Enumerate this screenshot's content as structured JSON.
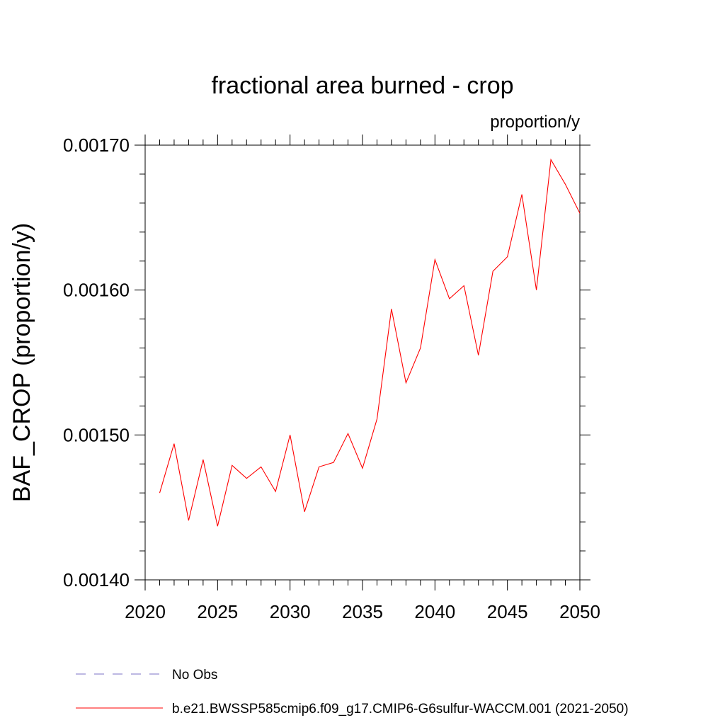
{
  "chart_data": {
    "type": "line",
    "title": "fractional area burned - crop",
    "units_label": "proportion/y",
    "xlabel": "",
    "ylabel": "BAF_CROP  (proportion/y)",
    "xlim": [
      2020,
      2050
    ],
    "ylim": [
      0.0014,
      0.0017
    ],
    "x_ticks": [
      2020,
      2025,
      2030,
      2035,
      2040,
      2045,
      2050
    ],
    "x_tick_labels": [
      "2020",
      "2025",
      "2030",
      "2035",
      "2040",
      "2045",
      "2050"
    ],
    "y_ticks": [
      0.0014,
      0.0015,
      0.0016,
      0.0017
    ],
    "y_tick_labels": [
      "0.00140",
      "0.00150",
      "0.00160",
      "0.00170"
    ],
    "grid": false,
    "legend_position": "bottom",
    "series": [
      {
        "name": "b.e21.BWSSP585cmip6.f09_g17.CMIP6-G6sulfur-WACCM.001 (2021-2050)",
        "color": "#ff0000",
        "style": "solid",
        "x": [
          2021,
          2022,
          2023,
          2024,
          2025,
          2026,
          2027,
          2028,
          2029,
          2030,
          2031,
          2032,
          2033,
          2034,
          2035,
          2036,
          2037,
          2038,
          2039,
          2040,
          2041,
          2042,
          2043,
          2044,
          2045,
          2046,
          2047,
          2048,
          2049,
          2050
        ],
        "values": [
          0.00146,
          0.001494,
          0.001441,
          0.001483,
          0.001437,
          0.001479,
          0.00147,
          0.001478,
          0.001461,
          0.0015,
          0.001447,
          0.001478,
          0.001481,
          0.001501,
          0.001477,
          0.001511,
          0.001587,
          0.001536,
          0.00156,
          0.001621,
          0.001594,
          0.001603,
          0.001555,
          0.001613,
          0.001623,
          0.001666,
          0.0016,
          0.00169,
          0.001673,
          0.001653
        ]
      },
      {
        "name": "No Obs",
        "color": "#7b72c4",
        "style": "dashed",
        "x": [],
        "values": []
      }
    ]
  }
}
